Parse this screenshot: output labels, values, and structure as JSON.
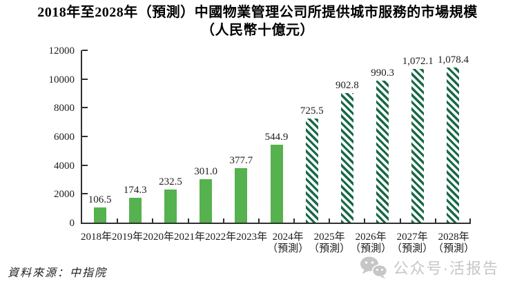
{
  "title": {
    "line1": "2018年至2028年（預測）中國物業管理公司所提供城市服務的市場規模",
    "line2": "（人民幣十億元）"
  },
  "source_note": "資料來源：中指院",
  "watermark": {
    "icon": "wechat-icon",
    "text": "公众号·活报告"
  },
  "chart_data": {
    "type": "bar",
    "title": "2018年至2028年（預測）中國物業管理公司所提供城市服務的市場規模（人民幣十億元）",
    "xlabel": "",
    "ylabel": "",
    "categories": [
      "2018年",
      "2019年",
      "2020年",
      "2021年",
      "2022年",
      "2023年",
      "2024年",
      "2025年",
      "2026年",
      "2027年",
      "2028年"
    ],
    "category_sublabels": [
      "",
      "",
      "",
      "",
      "",
      "",
      "（預測）",
      "（預測）",
      "（預測）",
      "（預測）",
      "（預測）"
    ],
    "values": [
      106.5,
      174.3,
      232.5,
      301.0,
      377.7,
      544.9,
      725.5,
      902.8,
      990.3,
      1072.1,
      1078.4
    ],
    "value_labels": [
      "106.5",
      "174.3",
      "232.5",
      "301.0",
      "377.7",
      "544.9",
      "725.5",
      "902.8",
      "990.3",
      "1,072.1",
      "1,078.4"
    ],
    "bar_styles": [
      "solid",
      "solid",
      "solid",
      "solid",
      "solid",
      "solid",
      "hatched",
      "hatched",
      "hatched",
      "hatched",
      "hatched"
    ],
    "ylim": [
      0,
      12000
    ],
    "yticks": [
      0,
      2000,
      4000,
      6000,
      8000,
      10000,
      12000
    ],
    "plot_value_scale": 10,
    "grid": false,
    "legend": false,
    "colors": {
      "bar_solid": "#55b24e",
      "bar_hatch_stripe": "#176946",
      "bar_hatch_bg": "#ffffff",
      "axis": "#2f2f2f"
    }
  }
}
